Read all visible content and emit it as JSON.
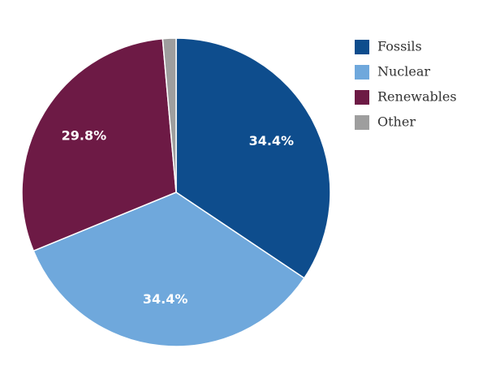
{
  "chart_data": {
    "type": "pie",
    "categories": [
      "Fossils",
      "Nuclear",
      "Renewables",
      "Other"
    ],
    "values": [
      34.4,
      34.4,
      29.8,
      1.4
    ],
    "value_labels": [
      "34.4%",
      "34.4%",
      "29.8%",
      null
    ],
    "colors": [
      "#0e4d8d",
      "#6fa8dc",
      "#6d1a45",
      "#9e9e9e"
    ],
    "legend": "right"
  }
}
